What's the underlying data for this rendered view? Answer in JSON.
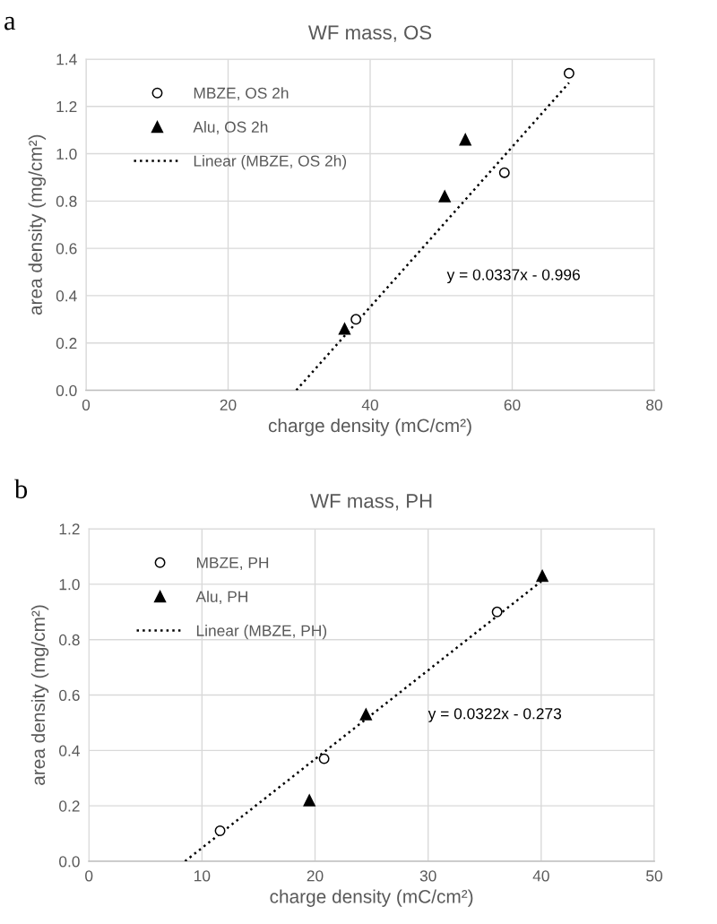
{
  "chart_data": [
    {
      "type": "scatter",
      "title": "WF mass, OS",
      "xlabel": "charge density (mC/cm²)",
      "ylabel": "area density (mg/cm²)",
      "xlim": [
        0,
        80
      ],
      "xticks": [
        0,
        20,
        40,
        60,
        80
      ],
      "ylim": [
        0,
        1.4
      ],
      "yticks": [
        {
          "value": 0,
          "label": "0.0"
        },
        {
          "value": 0.2,
          "label": "0.2"
        },
        {
          "value": 0.4,
          "label": "0.4"
        },
        {
          "value": 0.6,
          "label": "0.6"
        },
        {
          "value": 0.8,
          "label": "0.8"
        },
        {
          "value": 1.0,
          "label": "1.0"
        },
        {
          "value": 1.2,
          "label": "1.2"
        },
        {
          "value": 1.4,
          "label": "1.4"
        }
      ],
      "grid": true,
      "legend": "top left",
      "series": [
        {
          "name": "MBZE, OS 2h",
          "marker": "circle",
          "color": "#000000",
          "x": [
            38.0,
            58.9,
            68.0
          ],
          "values": [
            0.3,
            0.92,
            1.34
          ]
        },
        {
          "name": "Alu, OS 2h",
          "marker": "triangle",
          "color": "#000000",
          "x": [
            36.4,
            50.5,
            53.4
          ],
          "values": [
            0.26,
            0.82,
            1.06
          ]
        },
        {
          "name": "Linear (MBZE, OS 2h)",
          "type": "line",
          "marker": "none",
          "line_style": "dotted",
          "color": "#000000",
          "x": [
            29.6,
            68.0
          ],
          "values": [
            0.0,
            1.3
          ]
        }
      ],
      "annotations": [
        "a",
        "y = 0.0337x - 0.996"
      ]
    },
    {
      "type": "scatter",
      "title": "WF mass, PH",
      "xlabel": "charge density (mC/cm²)",
      "ylabel": "area density (mg/cm²)",
      "xlim": [
        0,
        50
      ],
      "xticks": [
        0,
        10,
        20,
        30,
        40,
        50
      ],
      "ylim": [
        0,
        1.2
      ],
      "yticks": [
        {
          "value": 0,
          "label": "0.0"
        },
        {
          "value": 0.2,
          "label": "0.2"
        },
        {
          "value": 0.4,
          "label": "0.4"
        },
        {
          "value": 0.6,
          "label": "0.6"
        },
        {
          "value": 0.8,
          "label": "0.8"
        },
        {
          "value": 1.0,
          "label": "1.0"
        },
        {
          "value": 1.2,
          "label": "1.2"
        }
      ],
      "grid": true,
      "legend": "top left",
      "series": [
        {
          "name": "MBZE, PH",
          "marker": "circle",
          "color": "#000000",
          "x": [
            11.6,
            20.8,
            36.1
          ],
          "values": [
            0.11,
            0.37,
            0.9
          ]
        },
        {
          "name": "Alu, PH",
          "marker": "triangle",
          "color": "#000000",
          "x": [
            19.5,
            24.5,
            40.1
          ],
          "values": [
            0.22,
            0.53,
            1.03
          ]
        },
        {
          "name": "Linear (MBZE, PH)",
          "type": "line",
          "marker": "none",
          "line_style": "dotted",
          "color": "#000000",
          "x": [
            8.5,
            40.0
          ],
          "values": [
            0.0,
            1.01
          ]
        }
      ],
      "annotations": [
        "b",
        "y = 0.0322x - 0.273"
      ]
    }
  ]
}
